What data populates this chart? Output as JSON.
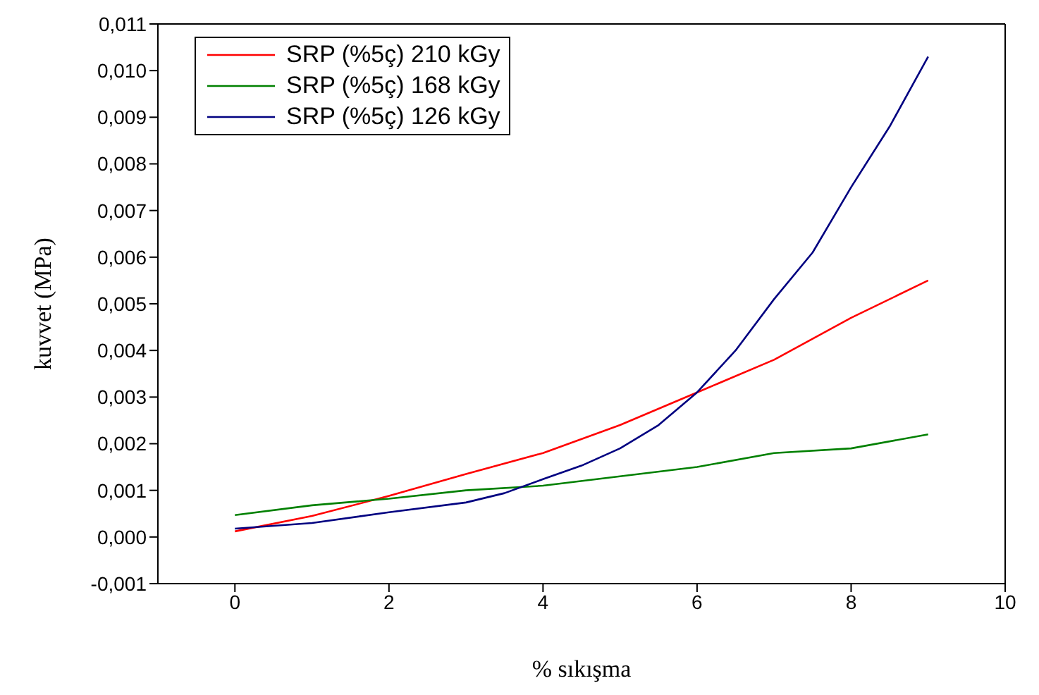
{
  "chart_data": {
    "type": "line",
    "xlabel": "% sıkışma",
    "ylabel": "kuvvet (MPa)",
    "xlim": [
      -1,
      10
    ],
    "xticks": [
      0,
      2,
      4,
      6,
      8,
      10
    ],
    "ylim": [
      -0.001,
      0.011
    ],
    "yticks": [
      {
        "value": -0.001,
        "label": "-0,001"
      },
      {
        "value": 0,
        "label": "0,000"
      },
      {
        "value": 0.001,
        "label": "0,001"
      },
      {
        "value": 0.002,
        "label": "0,002"
      },
      {
        "value": 0.003,
        "label": "0,003"
      },
      {
        "value": 0.004,
        "label": "0,004"
      },
      {
        "value": 0.005,
        "label": "0,005"
      },
      {
        "value": 0.006,
        "label": "0,006"
      },
      {
        "value": 0.007,
        "label": "0,007"
      },
      {
        "value": 0.008,
        "label": "0,008"
      },
      {
        "value": 0.009,
        "label": "0,009"
      },
      {
        "value": 0.01,
        "label": "0,010"
      },
      {
        "value": 0.011,
        "label": "0,011"
      }
    ],
    "legend": "top left",
    "marker": "none",
    "line_style": "solid",
    "series": [
      {
        "name": "SRP (%5ç) 210 kGy",
        "color": "#ff0000",
        "x": [
          0,
          1,
          2,
          3,
          4,
          5,
          6,
          7,
          8,
          9
        ],
        "values": [
          0.00012,
          0.00045,
          0.00088,
          0.00135,
          0.0018,
          0.0024,
          0.0031,
          0.0038,
          0.0047,
          0.0055
        ]
      },
      {
        "name": "SRP (%5ç) 168 kGy",
        "color": "#008000",
        "x": [
          0,
          1,
          2,
          3,
          4,
          5,
          6,
          7,
          8,
          9
        ],
        "values": [
          0.00047,
          0.00068,
          0.00082,
          0.001,
          0.0011,
          0.0013,
          0.0015,
          0.0018,
          0.0019,
          0.0022
        ]
      },
      {
        "name": "SRP (%5ç) 126 kGy",
        "color": "#000080",
        "x": [
          0,
          1,
          2,
          3,
          3.5,
          4,
          4.5,
          5,
          5.5,
          6,
          6.5,
          7,
          7.5,
          8,
          8.5,
          9
        ],
        "values": [
          0.00018,
          0.0003,
          0.00053,
          0.00074,
          0.00094,
          0.00124,
          0.00153,
          0.0019,
          0.0024,
          0.0031,
          0.004,
          0.0051,
          0.0061,
          0.0075,
          0.0088,
          0.0103
        ]
      }
    ]
  }
}
